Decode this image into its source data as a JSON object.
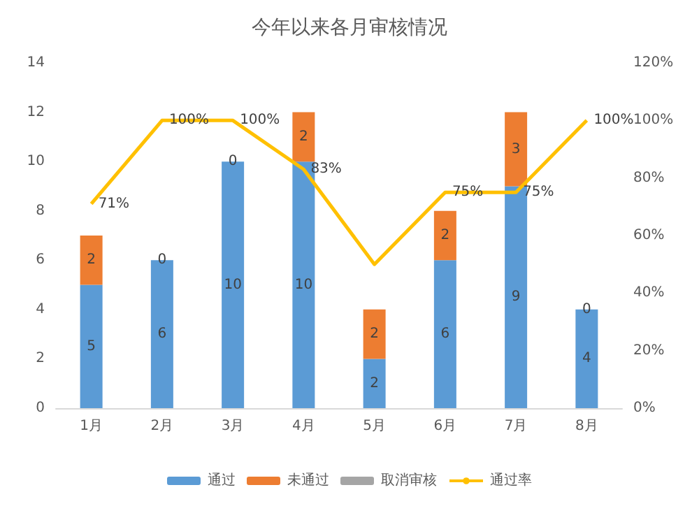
{
  "chart_data": {
    "type": "bar",
    "title": "今年以来各月审核情况",
    "categories": [
      "1月",
      "2月",
      "3月",
      "4月",
      "5月",
      "6月",
      "7月",
      "8月"
    ],
    "stacked": true,
    "data_labels": true,
    "grid": false,
    "legend": "bottom",
    "ylim": [
      0,
      14
    ],
    "yticks": [
      0,
      2,
      4,
      6,
      8,
      10,
      12,
      14
    ],
    "y2lim": [
      0,
      120
    ],
    "y2ticks": [
      {
        "value": 0,
        "label": "0%"
      },
      {
        "value": 20,
        "label": "20%"
      },
      {
        "value": 40,
        "label": "40%"
      },
      {
        "value": 60,
        "label": "60%"
      },
      {
        "value": 80,
        "label": "80%"
      },
      {
        "value": 100,
        "label": "100%"
      },
      {
        "value": 120,
        "label": "120%"
      }
    ],
    "series": [
      {
        "name": "通过",
        "color": "#5b9bd5",
        "values": [
          5,
          6,
          10,
          10,
          2,
          6,
          9,
          4
        ]
      },
      {
        "name": "未通过",
        "color": "#ed7d31",
        "values": [
          2,
          0,
          0,
          2,
          2,
          2,
          3,
          0
        ]
      },
      {
        "name": "取消审核",
        "color": "#a5a5a5",
        "values": [
          null,
          null,
          null,
          null,
          null,
          null,
          null,
          null
        ]
      },
      {
        "name": "通过率",
        "type": "line",
        "axis": "y2",
        "color": "#ffc000",
        "values": [
          71,
          100,
          100,
          83,
          50,
          75,
          75,
          100
        ],
        "value_labels": [
          "71%",
          "100%",
          "100%",
          "83%",
          null,
          "75%",
          "75%",
          "100%"
        ]
      }
    ]
  }
}
